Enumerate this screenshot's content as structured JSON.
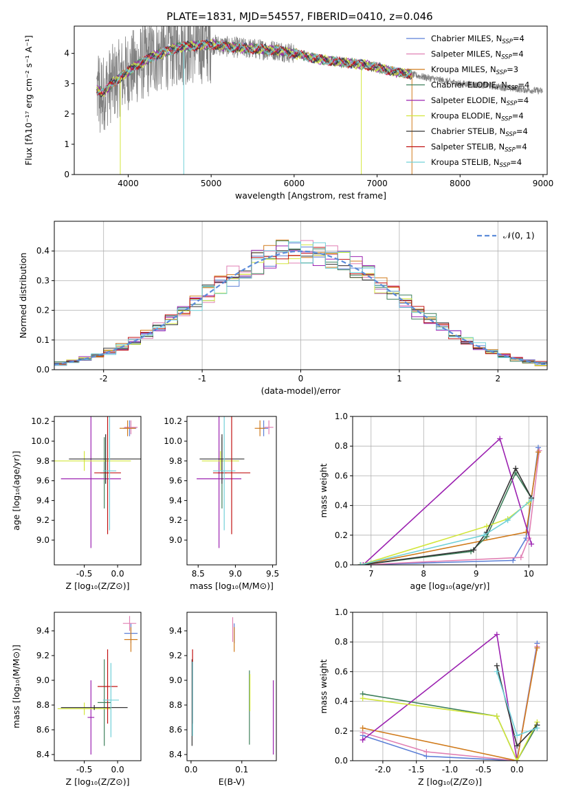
{
  "figure": {
    "title": "PLATE=1831, MJD=54557, FIBERID=0410, z=0.046"
  },
  "colors": {
    "Chabrier MILES": "#5b7fd6",
    "Salpeter MILES": "#e07fb3",
    "Kroupa MILES": "#d07a1a",
    "Chabrier ELODIE": "#3d7f5a",
    "Salpeter ELODIE": "#9b20b0",
    "Kroupa ELODIE": "#d2e63a",
    "Chabrier STELIB": "#333333",
    "Salpeter STELIB": "#c01010",
    "Kroupa STELIB": "#70d0d8",
    "data": "#808080",
    "normal": "#5b8bd9"
  },
  "chart_data": [
    {
      "id": "spectrum",
      "type": "line",
      "xlabel": "wavelength [Angstrom, rest frame]",
      "ylabel": "Flux [fλ10⁻¹⁷ erg cm⁻² s⁻¹ A⁻¹]",
      "xlim": [
        3350,
        9050
      ],
      "ylim": [
        0,
        4.9
      ],
      "xticks": [
        4000,
        5000,
        6000,
        7000,
        8000,
        9000
      ],
      "yticks": [
        0,
        1,
        2,
        3,
        4
      ],
      "legend_position": "right",
      "legend": [
        {
          "name": "Chabrier MILES",
          "nssp": "4"
        },
        {
          "name": "Salpeter MILES",
          "nssp": "4"
        },
        {
          "name": "Kroupa MILES",
          "nssp": "3"
        },
        {
          "name": "Chabrier ELODIE",
          "nssp": "4"
        },
        {
          "name": "Salpeter ELODIE",
          "nssp": "4"
        },
        {
          "name": "Kroupa ELODIE",
          "nssp": "4"
        },
        {
          "name": "Chabrier STELIB",
          "nssp": "4"
        },
        {
          "name": "Salpeter STELIB",
          "nssp": "4"
        },
        {
          "name": "Kroupa STELIB",
          "nssp": "4"
        }
      ],
      "data_range": [
        3620,
        9000
      ],
      "model_range": [
        3620,
        7420
      ],
      "continuum": [
        [
          3620,
          2.8
        ],
        [
          3700,
          2.7
        ],
        [
          3800,
          3.0
        ],
        [
          3950,
          3.3
        ],
        [
          4100,
          3.6
        ],
        [
          4300,
          3.9
        ],
        [
          4600,
          4.2
        ],
        [
          4800,
          4.25
        ],
        [
          5000,
          4.3
        ],
        [
          5200,
          4.22
        ],
        [
          5500,
          4.15
        ],
        [
          5800,
          4.1
        ],
        [
          6000,
          4.0
        ],
        [
          6300,
          3.8
        ],
        [
          6600,
          3.7
        ],
        [
          6900,
          3.6
        ],
        [
          7200,
          3.4
        ],
        [
          7420,
          3.3
        ],
        [
          7600,
          3.2
        ],
        [
          7800,
          3.1
        ],
        [
          8000,
          3.0
        ],
        [
          8300,
          2.95
        ],
        [
          8600,
          2.85
        ],
        [
          9000,
          2.75
        ]
      ]
    },
    {
      "id": "residuals",
      "type": "histogram",
      "xlabel": "(data-model)/error",
      "ylabel": "Normed distribution",
      "xlim": [
        -2.5,
        2.5
      ],
      "ylim": [
        0,
        0.5
      ],
      "xticks": [
        -2,
        -1,
        0,
        1,
        2
      ],
      "yticks": [
        0.0,
        0.1,
        0.2,
        0.3,
        0.4
      ],
      "bin_width": 0.125,
      "grid": true,
      "legend": [
        "𝒩(0, 1)"
      ],
      "legend_position": "top-right"
    },
    {
      "id": "age-vs-Z",
      "type": "errorbar",
      "xlabel": "Z [log₁₀(Z/Z⊙)]",
      "ylabel": "age  [log₁₀(age/yr)]",
      "xlim": [
        -0.95,
        0.35
      ],
      "ylim": [
        8.75,
        10.25
      ],
      "xticks": [
        -0.5,
        0.0
      ],
      "yticks": [
        9.0,
        9.2,
        9.4,
        9.6,
        9.8,
        10.0,
        10.2
      ],
      "points": [
        {
          "model": "Chabrier MILES",
          "x": 0.18,
          "y": 10.13,
          "xerr": 0.1,
          "yerr": 0.08
        },
        {
          "model": "Salpeter MILES",
          "x": 0.2,
          "y": 10.14,
          "xerr": 0.1,
          "yerr": 0.07
        },
        {
          "model": "Kroupa MILES",
          "x": 0.15,
          "y": 10.13,
          "xerr": 0.12,
          "yerr": 0.08
        },
        {
          "model": "Chabrier ELODIE",
          "x": -0.2,
          "y": 9.68,
          "xerr": 0.06,
          "yerr": 0.36
        },
        {
          "model": "Salpeter ELODIE",
          "x": -0.4,
          "y": 9.62,
          "xerr": 0.45,
          "yerr": 0.7
        },
        {
          "model": "Kroupa ELODIE",
          "x": -0.5,
          "y": 9.8,
          "xerr": 0.7,
          "yerr": 0.1
        },
        {
          "model": "Chabrier STELIB",
          "x": -0.18,
          "y": 9.82,
          "xerr": 0.55,
          "yerr": 0.25
        },
        {
          "model": "Salpeter STELIB",
          "x": -0.15,
          "y": 9.68,
          "xerr": 0.2,
          "yerr": 0.62
        },
        {
          "model": "Kroupa STELIB",
          "x": -0.12,
          "y": 9.7,
          "xerr": 0.1,
          "yerr": 0.6
        }
      ]
    },
    {
      "id": "age-vs-mass",
      "type": "errorbar",
      "xlabel": "mass [log₁₀(M/M⊙)]",
      "ylabel": "",
      "xlim": [
        8.35,
        9.55
      ],
      "ylim": [
        8.75,
        10.25
      ],
      "xticks": [
        8.5,
        9.0,
        9.5
      ],
      "yticks": [
        9.0,
        9.2,
        9.4,
        9.6,
        9.8,
        10.0,
        10.2
      ],
      "points": [
        {
          "model": "Chabrier MILES",
          "x": 9.38,
          "y": 10.13,
          "xerr": 0.06,
          "yerr": 0.08
        },
        {
          "model": "Salpeter MILES",
          "x": 9.45,
          "y": 10.14,
          "xerr": 0.06,
          "yerr": 0.07
        },
        {
          "model": "Kroupa MILES",
          "x": 9.33,
          "y": 10.13,
          "xerr": 0.07,
          "yerr": 0.08
        },
        {
          "model": "Chabrier ELODIE",
          "x": 8.82,
          "y": 9.68,
          "xerr": 0.06,
          "yerr": 0.36
        },
        {
          "model": "Salpeter ELODIE",
          "x": 8.78,
          "y": 9.62,
          "xerr": 0.3,
          "yerr": 0.7
        },
        {
          "model": "Kroupa ELODIE",
          "x": 8.8,
          "y": 9.8,
          "xerr": 0.25,
          "yerr": 0.1
        },
        {
          "model": "Chabrier STELIB",
          "x": 8.82,
          "y": 9.82,
          "xerr": 0.3,
          "yerr": 0.25
        },
        {
          "model": "Salpeter STELIB",
          "x": 8.95,
          "y": 9.68,
          "xerr": 0.25,
          "yerr": 0.62
        },
        {
          "model": "Kroupa STELIB",
          "x": 8.85,
          "y": 9.7,
          "xerr": 0.15,
          "yerr": 0.6
        }
      ]
    },
    {
      "id": "weight-vs-age",
      "type": "line",
      "xlabel": "age  [log₁₀(age/yr)]",
      "ylabel": "mass weight",
      "xlim": [
        6.65,
        10.35
      ],
      "ylim": [
        0,
        1.0
      ],
      "xticks": [
        7,
        8,
        9,
        10
      ],
      "yticks": [
        0.0,
        0.2,
        0.4,
        0.6,
        0.8,
        1.0
      ],
      "grid": true,
      "series": [
        {
          "model": "Chabrier MILES",
          "x": [
            6.8,
            9.7,
            9.95,
            10.18
          ],
          "y": [
            0.0,
            0.03,
            0.18,
            0.79
          ]
        },
        {
          "model": "Salpeter MILES",
          "x": [
            6.8,
            9.85,
            10.0,
            10.2
          ],
          "y": [
            0.0,
            0.05,
            0.18,
            0.77
          ]
        },
        {
          "model": "Kroupa MILES",
          "x": [
            6.8,
            9.95,
            10.18
          ],
          "y": [
            0.0,
            0.22,
            0.76
          ]
        },
        {
          "model": "Chabrier ELODIE",
          "x": [
            6.8,
            8.9,
            9.2,
            9.75,
            10.05
          ],
          "y": [
            0.0,
            0.09,
            0.19,
            0.62,
            0.45
          ]
        },
        {
          "model": "Salpeter ELODIE",
          "x": [
            6.85,
            9.45,
            10.05
          ],
          "y": [
            0.0,
            0.85,
            0.14
          ]
        },
        {
          "model": "Kroupa ELODIE",
          "x": [
            6.8,
            9.2,
            9.6,
            10.0
          ],
          "y": [
            0.0,
            0.26,
            0.31,
            0.42
          ]
        },
        {
          "model": "Chabrier STELIB",
          "x": [
            6.8,
            8.95,
            9.2,
            9.75,
            10.05
          ],
          "y": [
            0.0,
            0.1,
            0.22,
            0.65,
            0.45
          ]
        },
        {
          "model": "Kroupa STELIB",
          "x": [
            6.8,
            9.15,
            9.6,
            10.05
          ],
          "y": [
            0.0,
            0.2,
            0.3,
            0.44
          ]
        }
      ]
    },
    {
      "id": "mass-vs-Z",
      "type": "errorbar",
      "xlabel": "Z [log₁₀(Z/Z⊙)]",
      "ylabel": "mass [log₁₀(M/M⊙)]",
      "xlim": [
        -0.95,
        0.35
      ],
      "ylim": [
        8.35,
        9.55
      ],
      "xticks": [
        -0.5,
        0.0
      ],
      "yticks": [
        8.4,
        8.6,
        8.8,
        9.0,
        9.2,
        9.4
      ],
      "points": [
        {
          "model": "Chabrier MILES",
          "x": 0.2,
          "y": 9.38,
          "xerr": 0.1,
          "yerr": 0.08
        },
        {
          "model": "Salpeter MILES",
          "x": 0.18,
          "y": 9.46,
          "xerr": 0.1,
          "yerr": 0.06
        },
        {
          "model": "Kroupa MILES",
          "x": 0.2,
          "y": 9.33,
          "xerr": 0.1,
          "yerr": 0.1
        },
        {
          "model": "Chabrier ELODIE",
          "x": -0.2,
          "y": 8.82,
          "xerr": 0.1,
          "yerr": 0.35
        },
        {
          "model": "Salpeter ELODIE",
          "x": -0.4,
          "y": 8.7,
          "xerr": 0.05,
          "yerr": 0.3
        },
        {
          "model": "Kroupa ELODIE",
          "x": -0.5,
          "y": 8.77,
          "xerr": 0.4,
          "yerr": 0.05
        },
        {
          "model": "Chabrier STELIB",
          "x": -0.35,
          "y": 8.78,
          "xerr": 0.5,
          "yerr": 0.02
        },
        {
          "model": "Salpeter STELIB",
          "x": -0.15,
          "y": 8.95,
          "xerr": 0.15,
          "yerr": 0.3
        },
        {
          "model": "Kroupa STELIB",
          "x": -0.1,
          "y": 8.84,
          "xerr": 0.12,
          "yerr": 0.3
        }
      ]
    },
    {
      "id": "mass-vs-EBV",
      "type": "errorbar",
      "xlabel": "E(B-V)",
      "ylabel": "",
      "xlim": [
        -0.008,
        0.168
      ],
      "ylim": [
        8.35,
        9.55
      ],
      "xticks": [
        0.0,
        0.1
      ],
      "yticks": [
        8.4,
        8.6,
        8.8,
        9.0,
        9.2,
        9.4
      ],
      "points": [
        {
          "model": "Chabrier MILES",
          "x": 0.085,
          "y": 9.38,
          "xerr": 0,
          "yerr": 0.08
        },
        {
          "model": "Salpeter MILES",
          "x": 0.082,
          "y": 9.41,
          "xerr": 0,
          "yerr": 0.1
        },
        {
          "model": "Kroupa MILES",
          "x": 0.085,
          "y": 9.33,
          "xerr": 0,
          "yerr": 0.1
        },
        {
          "model": "Chabrier ELODIE",
          "x": 0.115,
          "y": 8.78,
          "xerr": 0,
          "yerr": 0.3
        },
        {
          "model": "Salpeter ELODIE",
          "x": 0.162,
          "y": 8.7,
          "xerr": 0,
          "yerr": 0.3
        },
        {
          "model": "Kroupa ELODIE",
          "x": 0.116,
          "y": 8.9,
          "xerr": 0,
          "yerr": 0.15
        },
        {
          "model": "Chabrier STELIB",
          "x": 0.002,
          "y": 8.82,
          "xerr": 0,
          "yerr": 0.35
        },
        {
          "model": "Salpeter STELIB",
          "x": 0.003,
          "y": 8.95,
          "xerr": 0,
          "yerr": 0.3
        },
        {
          "model": "Kroupa STELIB",
          "x": 0.003,
          "y": 8.85,
          "xerr": 0,
          "yerr": 0.3
        }
      ]
    },
    {
      "id": "weight-vs-Z",
      "type": "line",
      "xlabel": "Z [log₁₀(Z/Z⊙)]",
      "ylabel": "mass weight",
      "xlim": [
        -2.45,
        0.45
      ],
      "ylim": [
        0,
        1.0
      ],
      "xticks": [
        -2.0,
        -1.5,
        -1.0,
        -0.5,
        0.0
      ],
      "yticks": [
        0.0,
        0.2,
        0.4,
        0.6,
        0.8,
        1.0
      ],
      "grid": true,
      "series": [
        {
          "model": "Chabrier MILES",
          "x": [
            -2.3,
            -1.35,
            0.0,
            0.3
          ],
          "y": [
            0.17,
            0.03,
            0.0,
            0.79
          ]
        },
        {
          "model": "Salpeter MILES",
          "x": [
            -2.3,
            -1.35,
            0.0,
            0.3
          ],
          "y": [
            0.19,
            0.06,
            0.0,
            0.77
          ]
        },
        {
          "model": "Kroupa MILES",
          "x": [
            -2.3,
            0.0,
            0.3
          ],
          "y": [
            0.22,
            0.0,
            0.76
          ]
        },
        {
          "model": "Chabrier ELODIE",
          "x": [
            -2.3,
            -0.3,
            0.0,
            0.3
          ],
          "y": [
            0.45,
            0.3,
            0.0,
            0.24
          ]
        },
        {
          "model": "Salpeter ELODIE",
          "x": [
            -2.3,
            -0.3,
            0.0
          ],
          "y": [
            0.14,
            0.85,
            0.0
          ]
        },
        {
          "model": "Kroupa ELODIE",
          "x": [
            -2.3,
            -0.3,
            0.0,
            0.3
          ],
          "y": [
            0.42,
            0.3,
            0.0,
            0.26
          ]
        },
        {
          "model": "Chabrier STELIB",
          "x": [
            -0.3,
            0.0,
            0.3
          ],
          "y": [
            0.64,
            0.1,
            0.24
          ]
        },
        {
          "model": "Kroupa STELIB",
          "x": [
            -0.3,
            0.0,
            0.3
          ],
          "y": [
            0.6,
            0.17,
            0.22
          ]
        }
      ]
    }
  ]
}
